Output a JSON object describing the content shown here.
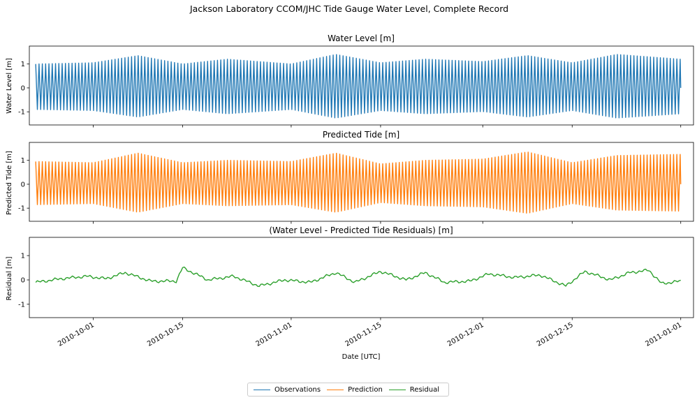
{
  "figure": {
    "suptitle": "Jackson Laboratory CCOM/JHC Tide Gauge Water Level, Complete Record",
    "xlabel": "Date [UTC]"
  },
  "legend": {
    "items": [
      {
        "label": "Observations",
        "color": "#1f77b4"
      },
      {
        "label": "Prediction",
        "color": "#ff7f0e"
      },
      {
        "label": "Residual",
        "color": "#2ca02c"
      }
    ]
  },
  "chart_data": [
    {
      "type": "line",
      "title": "Water Level [m]",
      "ylabel": "Water Level [m]",
      "series_name": "Observations",
      "color": "#1f77b4",
      "xlim": [
        "2010-09-21",
        "2011-01-03"
      ],
      "ylim": [
        -1.55,
        1.75
      ],
      "yticks": [
        -1,
        0,
        1
      ],
      "x_range": [
        "2010-09-22",
        "2011-01-01"
      ],
      "signal": {
        "kind": "tide",
        "amplitude_envelope": {
          "dates": [
            "2010-09-22",
            "2010-10-01",
            "2010-10-08",
            "2010-10-15",
            "2010-10-22",
            "2010-11-01",
            "2010-11-08",
            "2010-11-15",
            "2010-11-22",
            "2010-12-01",
            "2010-12-08",
            "2010-12-15",
            "2010-12-22",
            "2011-01-01"
          ],
          "amp": [
            1.0,
            1.05,
            1.35,
            1.0,
            1.2,
            1.0,
            1.4,
            1.05,
            1.2,
            1.1,
            1.35,
            1.05,
            1.4,
            1.2
          ]
        },
        "approx_min": -1.4,
        "approx_max": 1.5
      }
    },
    {
      "type": "line",
      "title": "Predicted Tide [m]",
      "ylabel": "Predicted Tide [m]",
      "series_name": "Prediction",
      "color": "#ff7f0e",
      "xlim": [
        "2010-09-21",
        "2011-01-03"
      ],
      "ylim": [
        -1.55,
        1.75
      ],
      "yticks": [
        -1,
        0,
        1
      ],
      "x_range": [
        "2010-09-22",
        "2011-01-01"
      ],
      "signal": {
        "kind": "tide",
        "amplitude_envelope": {
          "dates": [
            "2010-09-22",
            "2010-10-01",
            "2010-10-08",
            "2010-10-15",
            "2010-10-22",
            "2010-11-01",
            "2010-11-08",
            "2010-11-15",
            "2010-11-22",
            "2010-12-01",
            "2010-12-08",
            "2010-12-15",
            "2010-12-22",
            "2011-01-01"
          ],
          "amp": [
            0.95,
            0.9,
            1.3,
            0.9,
            1.0,
            0.95,
            1.3,
            0.85,
            1.0,
            1.05,
            1.35,
            0.9,
            1.2,
            1.25
          ]
        },
        "approx_min": -1.2,
        "approx_max": 1.4
      }
    },
    {
      "type": "line",
      "title": "(Water Level - Predicted Tide Residuals) [m]",
      "ylabel": "Residual [m]",
      "series_name": "Residual",
      "color": "#2ca02c",
      "xlim": [
        "2010-09-21",
        "2011-01-03"
      ],
      "ylim": [
        -1.55,
        1.75
      ],
      "yticks": [
        -1,
        0,
        1
      ],
      "xticks": [
        "2010-10-01",
        "2010-10-15",
        "2010-11-01",
        "2010-11-15",
        "2010-12-01",
        "2010-12-15",
        "2011-01-01"
      ],
      "x_range": [
        "2010-09-22",
        "2011-01-01"
      ],
      "points": {
        "x": [
          "2010-09-22",
          "2010-09-26",
          "2010-09-30",
          "2010-10-03",
          "2010-10-06",
          "2010-10-10",
          "2010-10-14",
          "2010-10-15",
          "2010-10-19",
          "2010-10-23",
          "2010-10-27",
          "2010-10-31",
          "2010-11-04",
          "2010-11-08",
          "2010-11-11",
          "2010-11-15",
          "2010-11-19",
          "2010-11-22",
          "2010-11-25",
          "2010-11-29",
          "2010-12-02",
          "2010-12-06",
          "2010-12-10",
          "2010-12-14",
          "2010-12-17",
          "2010-12-21",
          "2010-12-24",
          "2010-12-27",
          "2010-12-29",
          "2011-01-01"
        ],
        "y": [
          -0.1,
          0.05,
          0.15,
          0.05,
          0.3,
          -0.05,
          -0.05,
          0.5,
          0.0,
          0.15,
          -0.25,
          0.0,
          -0.1,
          0.3,
          -0.1,
          0.35,
          0.0,
          0.3,
          -0.1,
          -0.05,
          0.25,
          0.1,
          0.2,
          -0.25,
          0.35,
          0.0,
          0.3,
          0.4,
          -0.15,
          -0.05
        ]
      }
    }
  ]
}
